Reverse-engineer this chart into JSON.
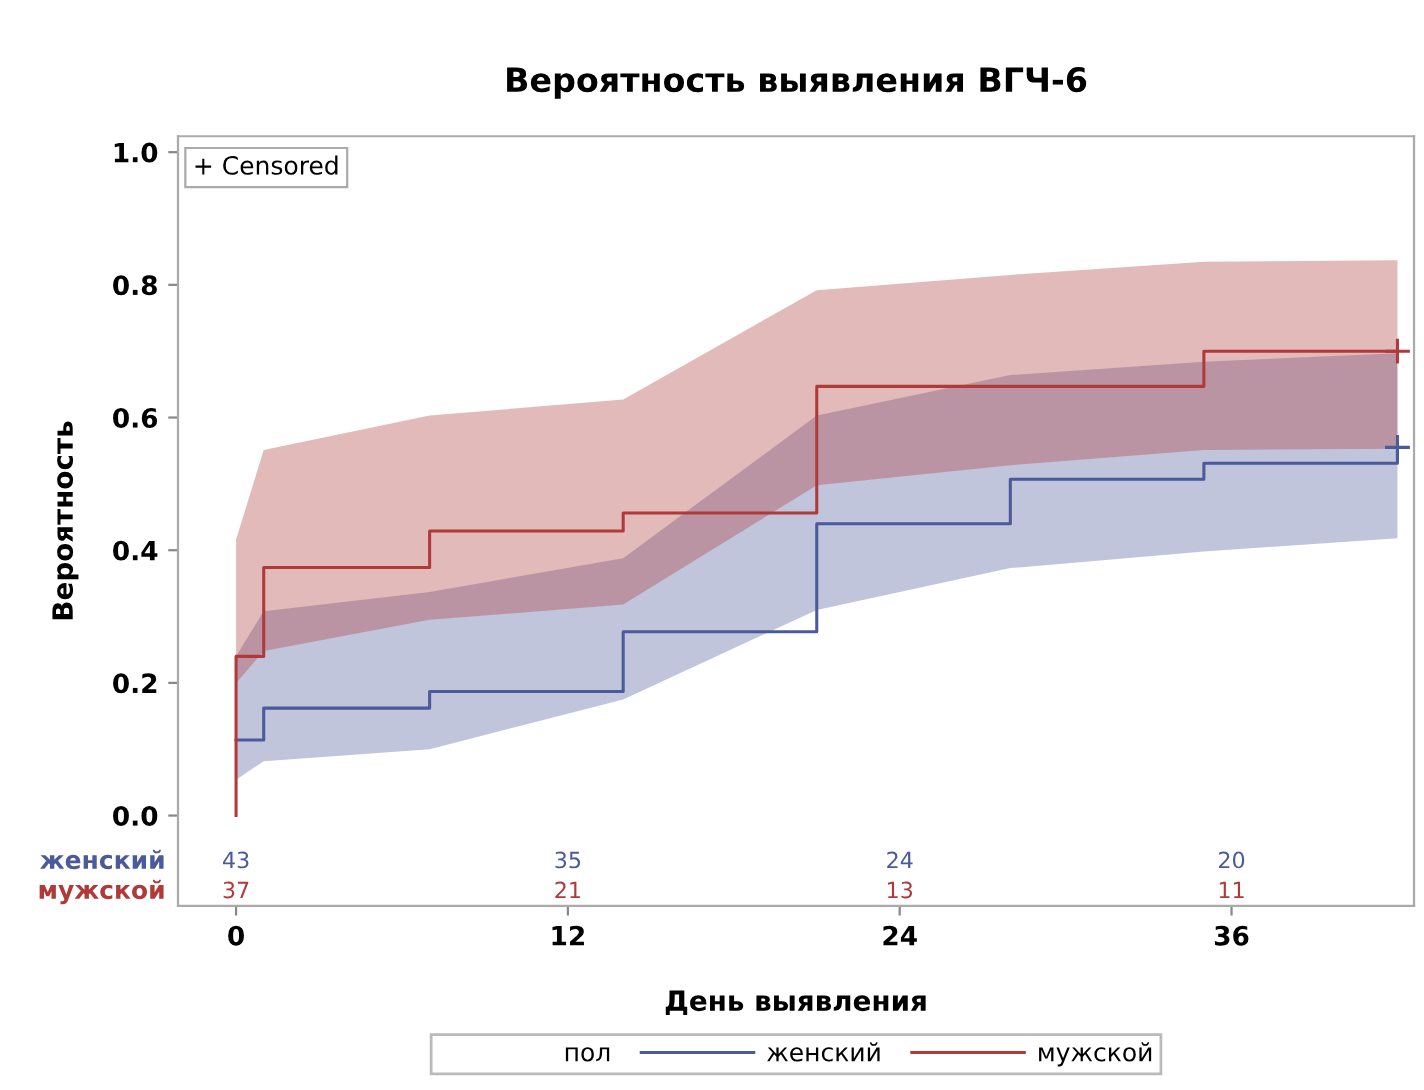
{
  "chart_data": {
    "type": "step",
    "title": "Вероятность выявления ВГЧ-6",
    "xlabel": "День выявления",
    "ylabel": "Вероятность",
    "legend_title": "пол",
    "legend": "bottom",
    "grid": false,
    "line_style": "solid",
    "xlim": [
      -2.1,
      42.6
    ],
    "ylim": [
      -0.136,
      1.024
    ],
    "xticks": [
      0,
      12,
      24,
      36
    ],
    "yticks": [
      {
        "value": 0,
        "label": "0.0"
      },
      {
        "value": 0.2,
        "label": "0.2"
      },
      {
        "value": 0.4,
        "label": "0.4"
      },
      {
        "value": 0.6,
        "label": "0.6"
      },
      {
        "value": 0.8,
        "label": "0.8"
      },
      {
        "value": 1,
        "label": "1.0"
      }
    ],
    "series": [
      {
        "name": "женский",
        "color": "#4a5a9a",
        "x": [
          0,
          1,
          7,
          14,
          21,
          28,
          35,
          42
        ],
        "values": [
          0.114,
          0.162,
          0.187,
          0.277,
          0.44,
          0.507,
          0.531,
          0.555
        ],
        "lower": [
          0.054,
          0.082,
          0.1,
          0.175,
          0.31,
          0.373,
          0.398,
          0.418
        ],
        "upper": [
          0.24,
          0.308,
          0.337,
          0.388,
          0.603,
          0.664,
          0.684,
          0.697
        ]
      },
      {
        "name": "мужской",
        "color": "#b03a3a",
        "x": [
          0,
          0,
          1,
          7,
          14,
          21,
          28,
          35,
          42
        ],
        "values": [
          0,
          0.24,
          0.374,
          0.429,
          0.456,
          0.647,
          0.647,
          0.7,
          0.7
        ],
        "lower": [
          null,
          0.2,
          0.248,
          0.295,
          0.318,
          0.498,
          0.528,
          0.551,
          0.553
        ],
        "upper": [
          null,
          0.416,
          0.551,
          0.603,
          0.627,
          0.792,
          0.815,
          0.835,
          0.837
        ]
      },
      {
        "type": "scatter",
        "marker": "cross",
        "color": "#4a5a9a",
        "x": [
          42
        ],
        "values": [
          0.555
        ]
      },
      {
        "type": "scatter",
        "marker": "cross",
        "color": "#b03a3a",
        "x": [
          42
        ],
        "values": [
          0.7
        ]
      }
    ],
    "annotations": [
      "+ Censored",
      "43",
      "35",
      "24",
      "20",
      "37",
      "21",
      "13",
      "11"
    ]
  }
}
